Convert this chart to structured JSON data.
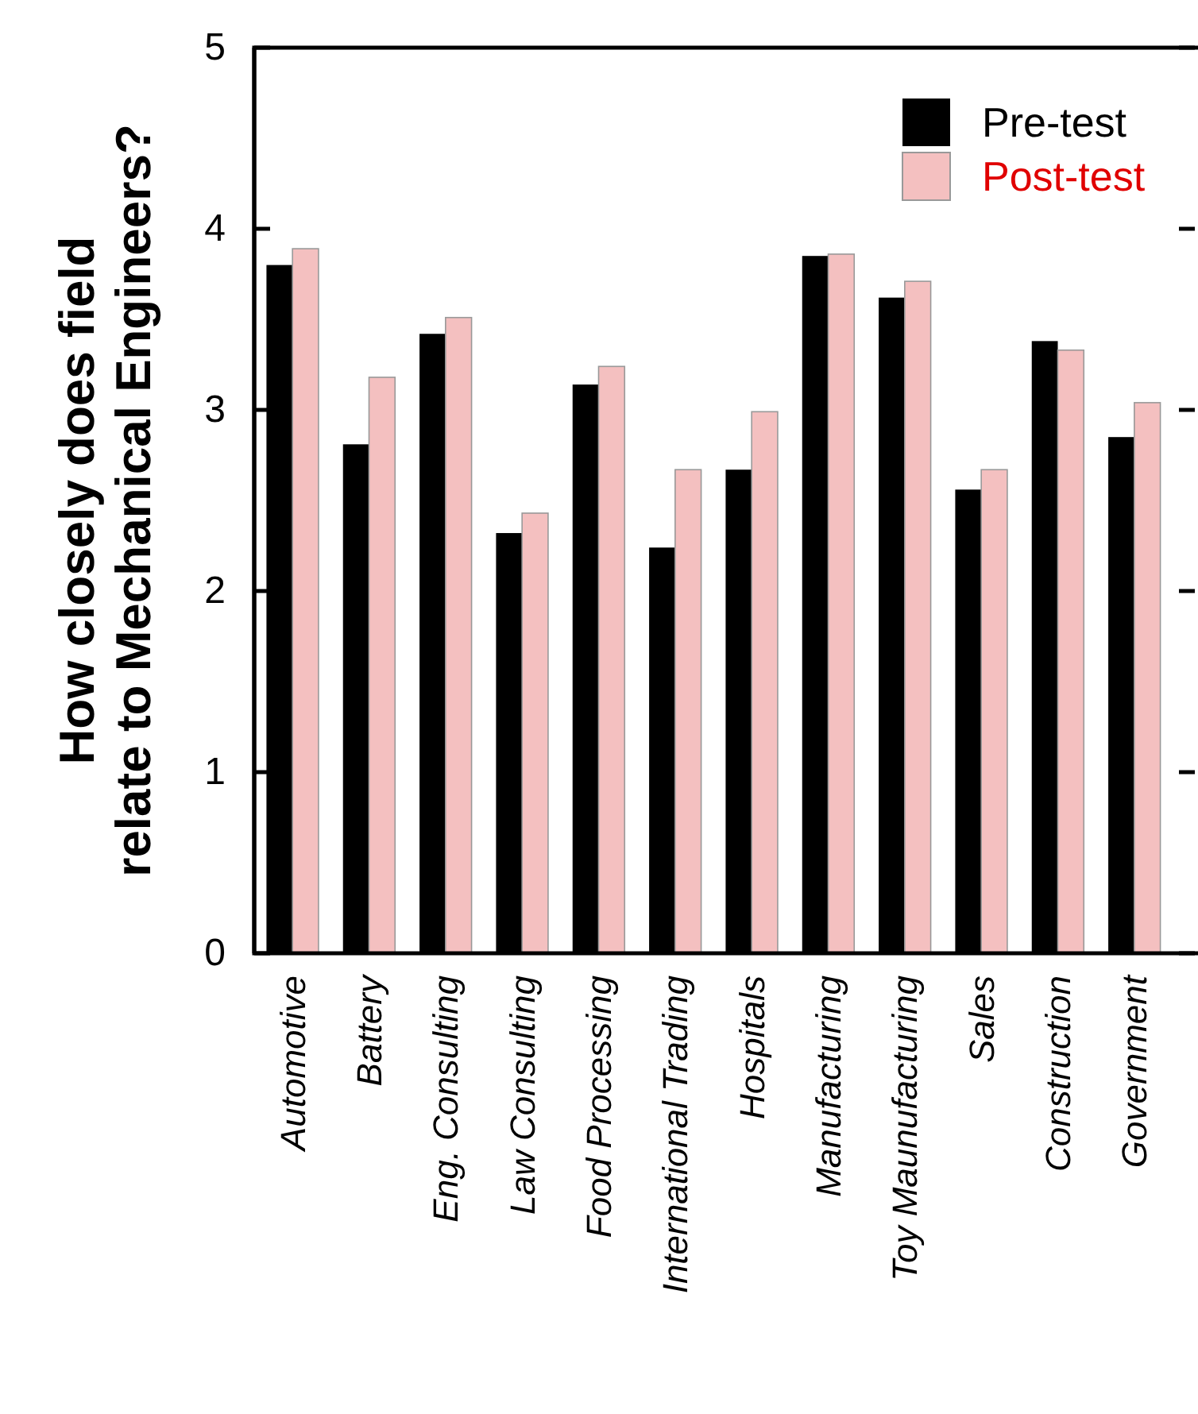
{
  "chart_data": {
    "type": "bar",
    "ylabel": "How closely does field\nrelate to Mechanical Engineers?",
    "categories": [
      "Automotive",
      "Battery",
      "Eng. Consulting",
      "Law Consulting",
      "Food Processing",
      "International Trading",
      "Hospitals",
      "Manufacturing",
      "Toy Maunufacturing",
      "Sales",
      "Construction",
      "Government"
    ],
    "series": [
      {
        "name": "Pre-test",
        "color": "#000000",
        "values": [
          3.8,
          2.81,
          3.42,
          2.32,
          3.14,
          2.24,
          2.67,
          3.85,
          3.62,
          2.56,
          3.38,
          2.85
        ]
      },
      {
        "name": "Post-test",
        "color": "#f4c0c0",
        "values": [
          3.89,
          3.18,
          3.51,
          2.43,
          3.24,
          2.67,
          2.99,
          3.86,
          3.71,
          2.67,
          3.33,
          3.04
        ]
      }
    ],
    "ylim": [
      0,
      5
    ],
    "yticks": [
      0,
      1,
      2,
      3,
      4,
      5
    ],
    "legend": "top right",
    "grid": false
  }
}
